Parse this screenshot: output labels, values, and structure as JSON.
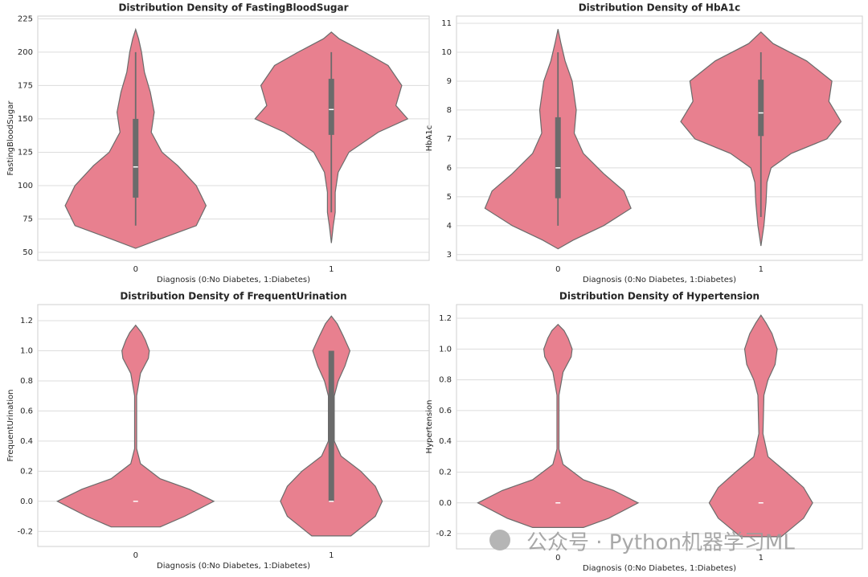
{
  "watermark": "公众号 · Python机器学习ML",
  "chart_data": [
    {
      "type": "violin",
      "title": "Distribution Density of FastingBloodSugar",
      "xlabel": "Diagnosis (0:No Diabetes, 1:Diabetes)",
      "ylabel": "FastingBloodSugar",
      "categories": [
        "0",
        "1"
      ],
      "ylim": [
        44,
        227
      ],
      "yticks": [
        50,
        75,
        100,
        125,
        150,
        175,
        200,
        225
      ],
      "grid": true,
      "color": "#e8808f",
      "violins": [
        {
          "density_y": [
            53,
            60,
            70,
            85,
            100,
            115,
            125,
            140,
            155,
            170,
            185,
            200,
            210,
            217
          ],
          "density": [
            0,
            0.25,
            0.62,
            0.72,
            0.62,
            0.43,
            0.27,
            0.16,
            0.19,
            0.15,
            0.09,
            0.06,
            0.03,
            0
          ],
          "box": {
            "whislo": 70,
            "q1": 91,
            "med": 114,
            "q3": 150,
            "whishi": 200
          }
        },
        {
          "density_y": [
            57,
            70,
            80,
            95,
            110,
            125,
            140,
            150,
            160,
            175,
            190,
            200,
            210,
            215
          ],
          "density": [
            0,
            0.02,
            0.04,
            0.04,
            0.07,
            0.18,
            0.48,
            0.78,
            0.66,
            0.72,
            0.58,
            0.34,
            0.08,
            0
          ],
          "box": {
            "whislo": 80,
            "q1": 138,
            "med": 157,
            "q3": 180,
            "whishi": 200
          }
        }
      ]
    },
    {
      "type": "violin",
      "title": "Distribution Density of HbA1c",
      "xlabel": "Diagnosis (0:No Diabetes, 1:Diabetes)",
      "ylabel": "HbA1c",
      "categories": [
        "0",
        "1"
      ],
      "ylim": [
        2.8,
        11.25
      ],
      "yticks": [
        3,
        4,
        5,
        6,
        7,
        8,
        9,
        10,
        11
      ],
      "grid": true,
      "color": "#e8808f",
      "violins": [
        {
          "density_y": [
            3.2,
            3.5,
            4,
            4.6,
            5.2,
            5.8,
            6.5,
            7.2,
            8,
            9,
            9.7,
            10.3,
            10.8
          ],
          "density": [
            0,
            0.15,
            0.45,
            0.72,
            0.65,
            0.45,
            0.25,
            0.16,
            0.18,
            0.14,
            0.07,
            0.03,
            0
          ],
          "box": {
            "whislo": 4,
            "q1": 4.95,
            "med": 6,
            "q3": 7.75,
            "whishi": 10
          }
        },
        {
          "density_y": [
            3.3,
            4,
            4.8,
            5.5,
            6,
            6.5,
            7,
            7.6,
            8.3,
            9,
            9.7,
            10.3,
            10.7
          ],
          "density": [
            0,
            0.03,
            0.05,
            0.06,
            0.1,
            0.3,
            0.65,
            0.79,
            0.67,
            0.7,
            0.45,
            0.12,
            0
          ],
          "box": {
            "whislo": 4.3,
            "q1": 7.1,
            "med": 7.9,
            "q3": 9.05,
            "whishi": 10
          }
        }
      ]
    },
    {
      "type": "violin",
      "title": "Distribution Density of FrequentUrination",
      "xlabel": "Diagnosis (0:No Diabetes, 1:Diabetes)",
      "ylabel": "FrequentUrination",
      "categories": [
        "0",
        "1"
      ],
      "ylim": [
        -0.3,
        1.307
      ],
      "yticks": [
        -0.2,
        {
          "value": 0,
          "label": "0.0"
        },
        0.2,
        0.4,
        0.6,
        0.8,
        {
          "value": 1,
          "label": "1.0"
        },
        1.2
      ],
      "grid": true,
      "color": "#e8808f",
      "violins": [
        {
          "density_y": [
            -0.17,
            -0.1,
            0,
            0.08,
            0.15,
            0.25,
            0.35,
            0.7,
            0.85,
            0.95,
            1.0,
            1.07,
            1.12,
            1.17
          ],
          "density": [
            0.25,
            0.5,
            0.8,
            0.55,
            0.25,
            0.05,
            0.01,
            0.01,
            0.05,
            0.13,
            0.14,
            0.1,
            0.06,
            0
          ],
          "box": {
            "whislo": 0,
            "q1": 0,
            "med": 0,
            "q3": 0,
            "whishi": 0
          }
        },
        {
          "density_y": [
            -0.23,
            -0.1,
            0,
            0.1,
            0.2,
            0.3,
            0.4,
            0.7,
            0.8,
            0.9,
            1.0,
            1.1,
            1.18,
            1.23
          ],
          "density": [
            0.2,
            0.45,
            0.52,
            0.45,
            0.3,
            0.1,
            0.03,
            0.03,
            0.07,
            0.14,
            0.19,
            0.12,
            0.06,
            0
          ],
          "box": {
            "whislo": 0,
            "q1": 0,
            "med": 0,
            "q3": 1,
            "whishi": 1
          }
        }
      ]
    },
    {
      "type": "violin",
      "title": "Distribution Density of Hypertension",
      "xlabel": "Diagnosis (0:No Diabetes, 1:Diabetes)",
      "ylabel": "Hypertension",
      "categories": [
        "0",
        "1"
      ],
      "ylim": [
        -0.299,
        1.289
      ],
      "yticks": [
        -0.2,
        {
          "value": 0,
          "label": "0.0"
        },
        0.2,
        0.4,
        0.6,
        0.8,
        {
          "value": 1,
          "label": "1.0"
        },
        1.2
      ],
      "grid": true,
      "color": "#e8808f",
      "violins": [
        {
          "density_y": [
            -0.16,
            -0.1,
            0,
            0.08,
            0.15,
            0.25,
            0.35,
            0.7,
            0.85,
            0.95,
            1.0,
            1.07,
            1.12,
            1.16
          ],
          "density": [
            0.25,
            0.5,
            0.79,
            0.55,
            0.25,
            0.05,
            0.01,
            0.01,
            0.05,
            0.13,
            0.14,
            0.1,
            0.06,
            0
          ],
          "box": {
            "whislo": 0,
            "q1": 0,
            "med": 0,
            "q3": 0,
            "whishi": 0
          }
        },
        {
          "density_y": [
            -0.22,
            -0.1,
            0,
            0.1,
            0.2,
            0.3,
            0.45,
            0.7,
            0.8,
            0.9,
            1.0,
            1.1,
            1.17,
            1.22
          ],
          "density": [
            0.2,
            0.42,
            0.51,
            0.42,
            0.25,
            0.07,
            0.02,
            0.03,
            0.07,
            0.14,
            0.16,
            0.11,
            0.05,
            0
          ],
          "box": {
            "whislo": 0,
            "q1": 0,
            "med": 0,
            "q3": 0,
            "whishi": 0
          }
        }
      ]
    }
  ]
}
